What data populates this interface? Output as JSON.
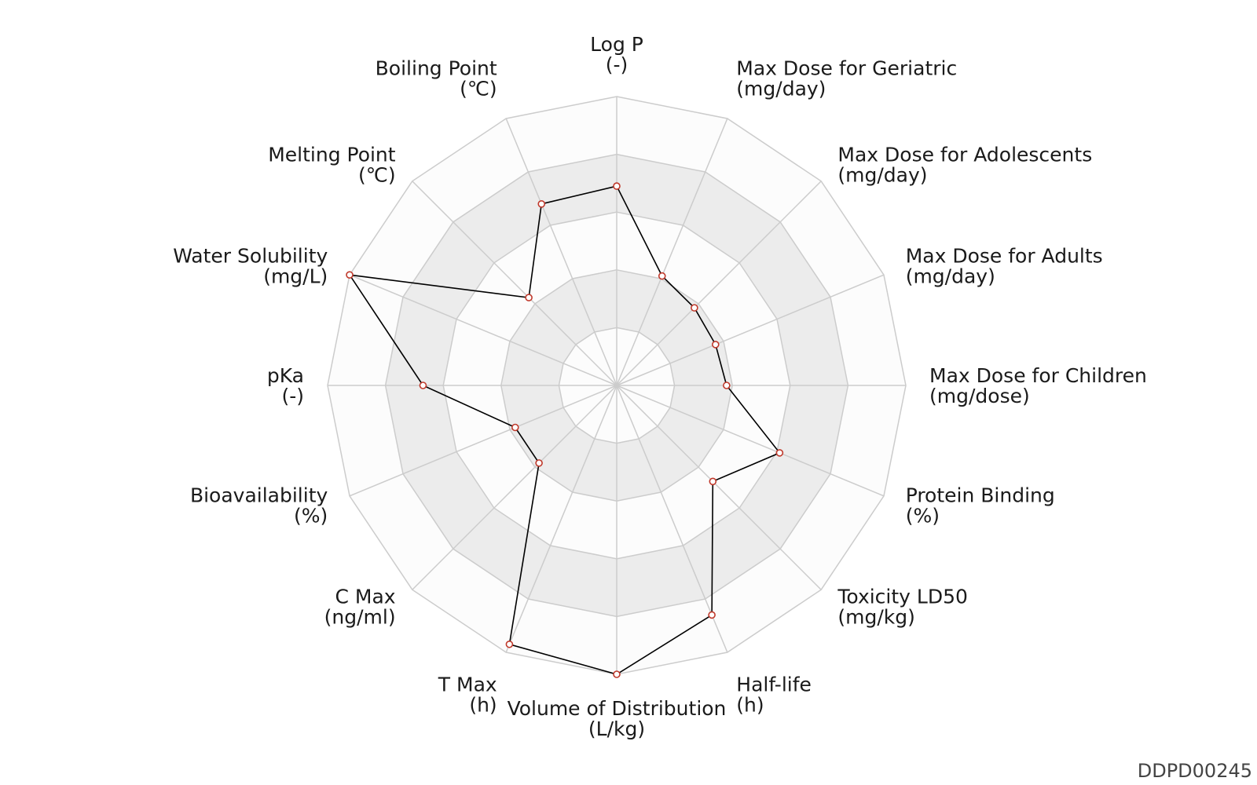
{
  "chart_id": "DDPD00245",
  "chart_data": {
    "type": "radar",
    "rings": 5,
    "range": [
      0,
      1
    ],
    "grid": true,
    "axes": [
      {
        "name": "Log P",
        "unit": "(-)",
        "value": 0.69
      },
      {
        "name": "Max Dose for Geriatric",
        "unit": "(mg/day)",
        "value": 0.41
      },
      {
        "name": "Max Dose for Adolescents",
        "unit": "(mg/day)",
        "value": 0.38
      },
      {
        "name": "Max Dose for Adults",
        "unit": "(mg/day)",
        "value": 0.37
      },
      {
        "name": "Max Dose for Children",
        "unit": "(mg/dose)",
        "value": 0.38
      },
      {
        "name": "Protein Binding",
        "unit": "(%)",
        "value": 0.61
      },
      {
        "name": "Toxicity LD50",
        "unit": "(mg/kg)",
        "value": 0.47
      },
      {
        "name": "Half-life",
        "unit": "(h)",
        "value": 0.86
      },
      {
        "name": "Volume of Distribution",
        "unit": "(L/kg)",
        "value": 1.0
      },
      {
        "name": "T Max",
        "unit": "(h)",
        "value": 0.97
      },
      {
        "name": "C Max",
        "unit": "(ng/ml)",
        "value": 0.38
      },
      {
        "name": "Bioavailability",
        "unit": "(%)",
        "value": 0.38
      },
      {
        "name": "pKa",
        "unit": "(-)",
        "value": 0.67
      },
      {
        "name": "Water Solubility",
        "unit": "(mg/L)",
        "value": 1.0
      },
      {
        "name": "Melting Point",
        "unit": "(℃)",
        "value": 0.43
      },
      {
        "name": "Boiling Point",
        "unit": "(℃)",
        "value": 0.68
      }
    ],
    "colors": {
      "line": "#000000",
      "marker_stroke": "#c0392b",
      "marker_fill": "#ffffff",
      "grid_line": "#cccccc",
      "band_dark": "#ececec",
      "band_light": "#fcfcfc"
    }
  }
}
